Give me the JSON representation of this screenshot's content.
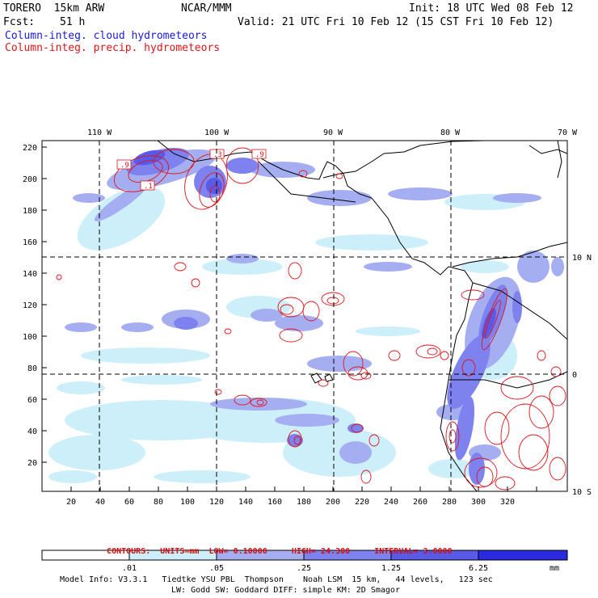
{
  "header": {
    "model": "TORERO  15km ARW",
    "center": "NCAR/MMM",
    "init": "Init: 18 UTC Wed 08 Feb 12",
    "fcst_label": "Fcst:",
    "fcst_value": "51 h",
    "valid": "Valid: 21 UTC Fri 10 Feb 12 (15 CST Fri 10 Feb 12)"
  },
  "fields": {
    "cloud": "Column-integ. cloud hydrometeors",
    "precip": "Column-integ. precip. hydrometeors"
  },
  "axes": {
    "top_lon_labels": [
      "110 W",
      "100 W",
      "90 W",
      "80 W",
      "70 W"
    ],
    "right_lat_labels": [
      "10 N",
      "0",
      "10 S"
    ],
    "y_ticks": [
      "220",
      "200",
      "180",
      "160",
      "140",
      "120",
      "100",
      "80",
      "60",
      "40",
      "20"
    ],
    "x_ticks": [
      "20",
      "40",
      "60",
      "80",
      "100",
      "120",
      "140",
      "160",
      "180",
      "200",
      "220",
      "240",
      "260",
      "280",
      "300",
      "320"
    ]
  },
  "contour_info": {
    "prefix": "CONTOURS:",
    "units": "UNITS=mm",
    "low": "LOW= 0.10000",
    "high": "HIGH= 24.300",
    "interval": "INTERVAL= 3.0000"
  },
  "colorbar": {
    "labels": [
      ".01",
      ".05",
      ".25",
      "1.25",
      "6.25"
    ],
    "units": "mm",
    "colors": [
      "#ffffff",
      "#cceffa",
      "#a6aef2",
      "#7d82ee",
      "#5a5ae8",
      "#2a2ae0"
    ]
  },
  "model_info": {
    "line1": "Model Info: V3.3.1   Tiedtke YSU PBL  Thompson    Noah LSM  15 km,   44 levels,   123 sec",
    "line2": "LW: Godd SW: Goddard DIFF: simple KM: 2D Smagor"
  },
  "map_labels": {
    "box1": ".9",
    "box2": ".3",
    "box3": ".9",
    "box4": ".1"
  }
}
